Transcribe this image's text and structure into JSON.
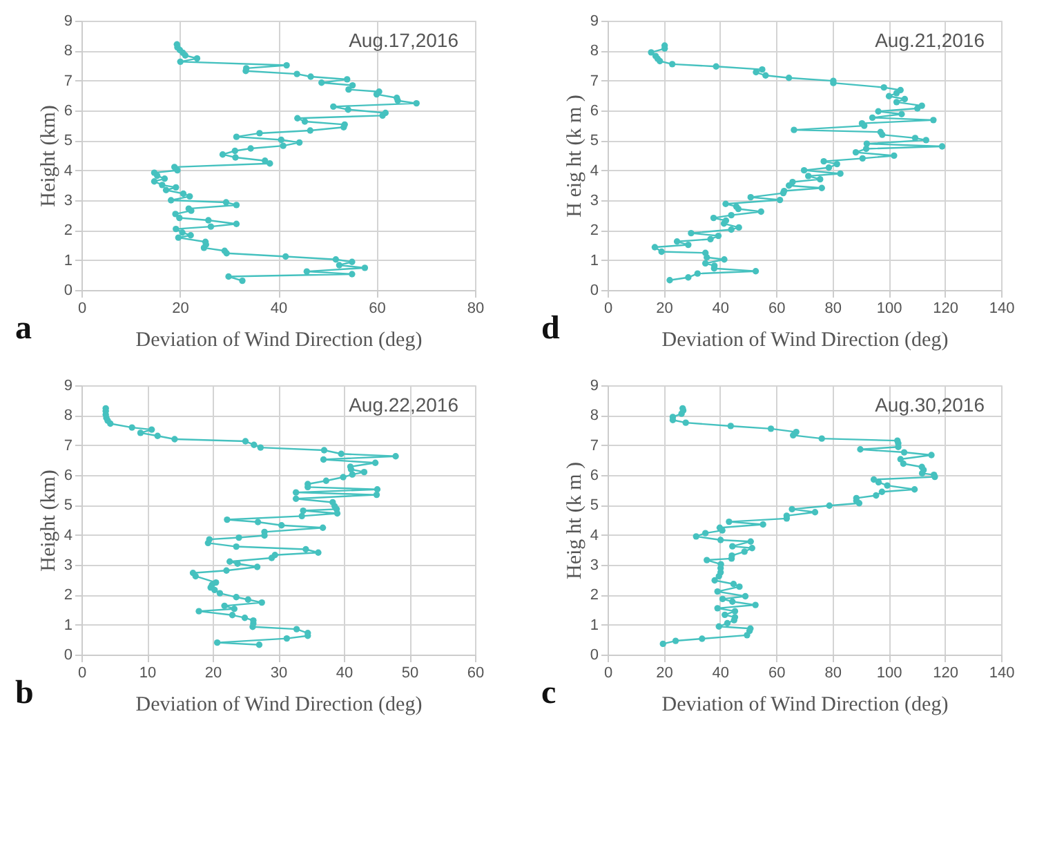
{
  "chart_data": [
    {
      "type": "line",
      "xlabel": "Deviation of Wind Direction (deg)",
      "ylabel": "Height (km)",
      "annotations": [
        "Aug.17,2016",
        "a"
      ],
      "xlim": [
        0,
        80
      ],
      "xticks": [
        0,
        20,
        40,
        60,
        80
      ],
      "ylim": [
        0,
        9
      ],
      "yticks": [
        0,
        1,
        2,
        3,
        4,
        5,
        6,
        7,
        8,
        9
      ],
      "grid": true,
      "marker": "circle",
      "line_style": "solid",
      "series": [
        {
          "color": "#45c1bf",
          "x": [
            32.7,
            29.9,
            55.0,
            45.8,
            57.6,
            52.4,
            55.0,
            51.7,
            41.5,
            29.5,
            29.1,
            24.9,
            25.3,
            25.2,
            19.7,
            22.2,
            20.5,
            19.2,
            26.3,
            31.5,
            25.8,
            19.9,
            19.1,
            22.3,
            21.8,
            31.5,
            29.4,
            18.2,
            22.0,
            20.7,
            17.2,
            19.2,
            16.4,
            14.8,
            16.9,
            15.4,
            14.8,
            19.5,
            18.9,
            38.3,
            37.3,
            31.3,
            28.7,
            31.2,
            34.4,
            41.0,
            44.3,
            40.6,
            31.5,
            36.2,
            46.5,
            53.3,
            53.5,
            45.4,
            43.9,
            61.2,
            61.8,
            54.2,
            51.2,
            68.1,
            64.3,
            64.1,
            60.0,
            60.5,
            54.3,
            55.1,
            48.8,
            54.0,
            46.6,
            43.8,
            33.4,
            33.5,
            41.7,
            20.1,
            23.5,
            21.1,
            20.6,
            20.0,
            19.5,
            19.4
          ],
          "values": [
            0.31,
            0.45,
            0.53,
            0.62,
            0.74,
            0.83,
            0.94,
            1.02,
            1.12,
            1.23,
            1.31,
            1.41,
            1.52,
            1.61,
            1.75,
            1.83,
            1.92,
            2.04,
            2.12,
            2.21,
            2.33,
            2.41,
            2.54,
            2.65,
            2.72,
            2.84,
            2.93,
            3.0,
            3.13,
            3.22,
            3.34,
            3.43,
            3.51,
            3.63,
            3.72,
            3.82,
            3.92,
            4.0,
            4.11,
            4.23,
            4.32,
            4.43,
            4.53,
            4.65,
            4.73,
            4.82,
            4.93,
            5.02,
            5.12,
            5.24,
            5.33,
            5.44,
            5.53,
            5.63,
            5.74,
            5.83,
            5.92,
            6.03,
            6.13,
            6.24,
            6.33,
            6.42,
            6.54,
            6.63,
            6.7,
            6.84,
            6.93,
            7.04,
            7.13,
            7.22,
            7.32,
            7.41,
            7.51,
            7.63,
            7.74,
            7.84,
            7.93,
            8.02,
            8.11,
            8.21
          ]
        }
      ]
    },
    {
      "type": "line",
      "xlabel": "Deviation of Wind Direction (deg)",
      "ylabel": "H eig ht (k m )",
      "annotations": [
        "Aug.21,2016",
        "d"
      ],
      "xlim": [
        0,
        140
      ],
      "xticks": [
        0,
        20,
        40,
        60,
        80,
        100,
        120,
        140
      ],
      "ylim": [
        0,
        9
      ],
      "yticks": [
        0,
        1,
        2,
        3,
        4,
        5,
        6,
        7,
        8,
        9
      ],
      "grid": true,
      "marker": "circle",
      "line_style": "solid",
      "series": [
        {
          "color": "#45c1bf",
          "x": [
            22.1,
            28.7,
            32.0,
            52.7,
            37.9,
            38.0,
            34.8,
            41.5,
            35.3,
            34.8,
            19.2,
            16.8,
            28.7,
            24.7,
            36.6,
            39.4,
            29.7,
            44.0,
            46.7,
            41.4,
            42.1,
            37.7,
            44.0,
            54.6,
            46.5,
            45.8,
            42.0,
            61.3,
            50.9,
            62.5,
            62.8,
            76.2,
            64.5,
            65.8,
            75.6,
            71.4,
            82.8,
            69.9,
            78.7,
            81.6,
            76.9,
            90.7,
            101.9,
            88.3,
            92.0,
            119.0,
            92.2,
            113.3,
            109.4,
            97.7,
            97.1,
            66.3,
            91.3,
            90.5,
            115.9,
            94.2,
            104.6,
            96.3,
            110.2,
            111.8,
            102.8,
            105.7,
            100.1,
            102.8,
            104.2,
            98.3,
            80.3,
            80.3,
            64.5,
            56.2,
            52.8,
            55.0,
            38.6,
            23.0,
            18.6,
            17.8,
            17.1,
            15.5,
            20.3,
            20.3
          ],
          "values": [
            0.33,
            0.42,
            0.55,
            0.63,
            0.72,
            0.81,
            0.89,
            1.02,
            1.09,
            1.24,
            1.28,
            1.43,
            1.51,
            1.62,
            1.7,
            1.81,
            1.9,
            2.02,
            2.09,
            2.22,
            2.32,
            2.41,
            2.5,
            2.62,
            2.71,
            2.79,
            2.88,
            3.01,
            3.1,
            3.24,
            3.31,
            3.41,
            3.49,
            3.61,
            3.7,
            3.81,
            3.89,
            4.0,
            4.09,
            4.21,
            4.3,
            4.4,
            4.49,
            4.6,
            4.72,
            4.8,
            4.89,
            5.01,
            5.08,
            5.19,
            5.28,
            5.35,
            5.49,
            5.57,
            5.68,
            5.76,
            5.88,
            5.97,
            6.07,
            6.16,
            6.28,
            6.38,
            6.48,
            6.58,
            6.68,
            6.77,
            6.92,
            6.99,
            7.09,
            7.17,
            7.28,
            7.37,
            7.47,
            7.55,
            7.65,
            7.73,
            7.82,
            7.94,
            8.07,
            8.17
          ]
        }
      ]
    },
    {
      "type": "line",
      "xlabel": "Deviation of Wind Direction (deg)",
      "ylabel": "Height (km)",
      "annotations": [
        "Aug.22,2016",
        "b"
      ],
      "xlim": [
        0,
        60
      ],
      "xticks": [
        0,
        10,
        20,
        30,
        40,
        50,
        60
      ],
      "ylim": [
        0,
        9
      ],
      "yticks": [
        0,
        1,
        2,
        3,
        4,
        5,
        6,
        7,
        8,
        9
      ],
      "grid": true,
      "marker": "circle",
      "line_style": "solid",
      "series": [
        {
          "color": "#45c1bf",
          "x": [
            27.1,
            20.7,
            31.3,
            34.5,
            34.5,
            32.8,
            26.1,
            26.2,
            26.2,
            24.9,
            23.0,
            17.9,
            23.3,
            21.8,
            27.5,
            25.4,
            23.6,
            21.1,
            20.3,
            19.7,
            19.9,
            20.5,
            17.4,
            17.0,
            22.1,
            26.8,
            23.8,
            22.6,
            29.0,
            29.5,
            36.1,
            34.2,
            23.6,
            19.3,
            19.5,
            24.0,
            27.9,
            27.9,
            36.8,
            30.5,
            26.9,
            22.2,
            33.6,
            39.0,
            33.8,
            38.9,
            38.6,
            38.3,
            32.7,
            45.0,
            32.7,
            45.1,
            34.5,
            34.5,
            37.3,
            39.9,
            41.3,
            43.1,
            41.1,
            41.0,
            44.8,
            36.9,
            47.9,
            39.6,
            37.0,
            27.3,
            26.3,
            25.0,
            14.2,
            11.6,
            9.0,
            10.7,
            7.7,
            4.4,
            4.0,
            3.8,
            3.7,
            3.7,
            3.7
          ],
          "values": [
            0.33,
            0.4,
            0.54,
            0.63,
            0.72,
            0.85,
            0.93,
            1.04,
            1.14,
            1.23,
            1.32,
            1.45,
            1.53,
            1.63,
            1.74,
            1.84,
            1.92,
            2.05,
            2.16,
            2.24,
            2.33,
            2.41,
            2.62,
            2.73,
            2.81,
            2.93,
            3.04,
            3.11,
            3.23,
            3.33,
            3.41,
            3.52,
            3.61,
            3.73,
            3.85,
            3.91,
            3.98,
            4.1,
            4.24,
            4.32,
            4.43,
            4.51,
            4.63,
            4.72,
            4.81,
            4.86,
            4.96,
            5.09,
            5.21,
            5.34,
            5.42,
            5.52,
            5.6,
            5.7,
            5.81,
            5.93,
            6.02,
            6.1,
            6.19,
            6.28,
            6.41,
            6.52,
            6.63,
            6.71,
            6.83,
            6.92,
            7.01,
            7.13,
            7.2,
            7.31,
            7.41,
            7.52,
            7.59,
            7.72,
            7.82,
            7.91,
            8.02,
            8.14,
            8.23
          ]
        }
      ]
    },
    {
      "type": "line",
      "xlabel": "Deviation of Wind Direction (deg)",
      "ylabel": "Heig ht (k m )",
      "annotations": [
        "Aug.30,2016",
        "c"
      ],
      "xlim": [
        0,
        140
      ],
      "xticks": [
        0,
        20,
        40,
        60,
        80,
        100,
        120,
        140
      ],
      "ylim": [
        0,
        9
      ],
      "yticks": [
        0,
        1,
        2,
        3,
        4,
        5,
        6,
        7,
        8,
        9
      ],
      "grid": true,
      "marker": "circle",
      "line_style": "solid",
      "series": [
        {
          "color": "#45c1bf",
          "x": [
            19.7,
            24.2,
            33.6,
            49.6,
            50.5,
            50.8,
            39.6,
            42.6,
            45.0,
            45.3,
            41.7,
            45.3,
            39.1,
            52.6,
            44.4,
            40.9,
            49.0,
            39.1,
            46.9,
            44.8,
            38.1,
            39.6,
            40.2,
            40.2,
            40.3,
            35.3,
            44.1,
            44.2,
            48.7,
            51.4,
            44.4,
            50.9,
            40.2,
            31.5,
            34.8,
            40.8,
            39.9,
            55.3,
            43.2,
            63.7,
            63.7,
            73.8,
            65.6,
            78.9,
            89.5,
            88.5,
            88.5,
            95.5,
            97.6,
            109.2,
            99.5,
            96.4,
            94.7,
            116.4,
            116.1,
            111.9,
            112.4,
            111.8,
            105.2,
            104.2,
            115.2,
            105.5,
            89.9,
            103.4,
            103.4,
            103.1,
            76.2,
            66.0,
            67.1,
            58.1,
            43.8,
            27.8,
            23.2,
            23.2,
            26.3,
            26.9,
            26.7
          ],
          "values": [
            0.36,
            0.46,
            0.53,
            0.65,
            0.79,
            0.87,
            0.94,
            1.05,
            1.15,
            1.25,
            1.33,
            1.45,
            1.55,
            1.66,
            1.77,
            1.86,
            1.95,
            2.11,
            2.27,
            2.36,
            2.48,
            2.62,
            2.75,
            2.89,
            3.02,
            3.16,
            3.21,
            3.31,
            3.44,
            3.56,
            3.62,
            3.78,
            3.83,
            3.95,
            4.06,
            4.15,
            4.24,
            4.35,
            4.44,
            4.55,
            4.64,
            4.76,
            4.86,
            4.98,
            5.06,
            5.14,
            5.23,
            5.32,
            5.44,
            5.52,
            5.65,
            5.76,
            5.85,
            5.94,
            6.01,
            6.06,
            6.17,
            6.27,
            6.38,
            6.53,
            6.67,
            6.76,
            6.86,
            6.94,
            7.06,
            7.15,
            7.22,
            7.33,
            7.44,
            7.55,
            7.64,
            7.75,
            7.84,
            7.94,
            8.05,
            8.16,
            8.23
          ]
        }
      ]
    }
  ]
}
